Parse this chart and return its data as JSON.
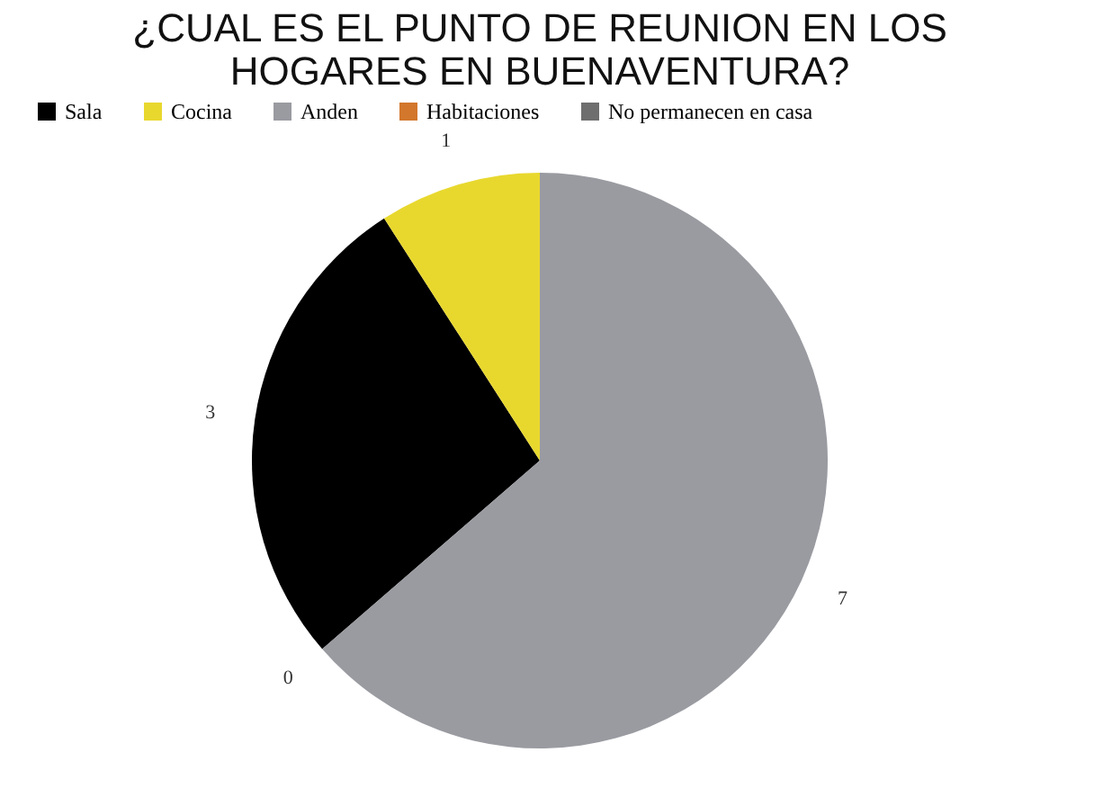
{
  "chart_data": {
    "type": "pie",
    "title": [
      "¿CUAL ES EL PUNTO DE REUNION EN LOS",
      "HOGARES EN BUENAVENTURA?"
    ],
    "categories": [
      "Sala",
      "Cocina",
      "Anden",
      "Habitaciones",
      "No permanecen en casa"
    ],
    "values": [
      3,
      1,
      7,
      0,
      0
    ],
    "colors": [
      "#000000",
      "#e8d82e",
      "#9a9ba1",
      "#d2772c",
      "#6e6e6e"
    ],
    "value_labels": [
      "3",
      "1",
      "7",
      "0",
      null
    ],
    "legend": "top"
  }
}
